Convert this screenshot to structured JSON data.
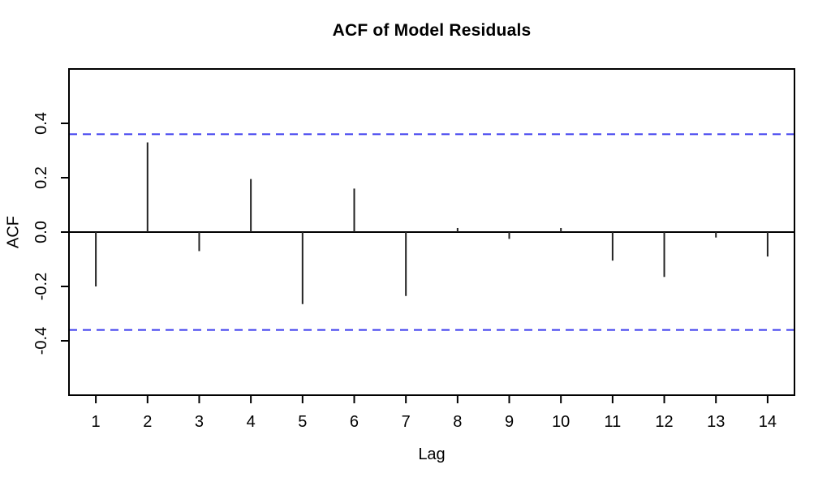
{
  "figure": {
    "title": "ACF of Model Residuals",
    "xlabel": "Lag",
    "ylabel": "ACF"
  },
  "colors": {
    "background": "#ffffff",
    "axis": "#000000",
    "spike": "#222222",
    "zero_line": "#000000",
    "ci_line": "#3a3aee",
    "tick_text": "#000000"
  },
  "chart_data": {
    "type": "bar",
    "subtype": "acf-spike-plot",
    "title": "ACF of Model Residuals",
    "xlabel": "Lag",
    "ylabel": "ACF",
    "x": [
      1,
      2,
      3,
      4,
      5,
      6,
      7,
      8,
      9,
      10,
      11,
      12,
      13,
      14
    ],
    "values": [
      -0.2,
      0.33,
      -0.07,
      0.195,
      -0.265,
      0.16,
      -0.235,
      0.015,
      -0.025,
      0.015,
      -0.105,
      -0.165,
      -0.02,
      -0.09
    ],
    "conf_band": 0.36,
    "conf_band_style": "dashed",
    "xlim": [
      0.48,
      14.52
    ],
    "ylim": [
      -0.6,
      0.6
    ],
    "x_ticks": [
      1,
      2,
      3,
      4,
      5,
      6,
      7,
      8,
      9,
      10,
      11,
      12,
      13,
      14
    ],
    "x_tick_labels": [
      "1",
      "2",
      "3",
      "4",
      "5",
      "6",
      "7",
      "8",
      "9",
      "10",
      "11",
      "12",
      "13",
      "14"
    ],
    "y_ticks": [
      0.4,
      0.2,
      0.0,
      -0.2,
      -0.4
    ],
    "y_tick_labels": [
      "0.4",
      "0.2",
      "0.0",
      "-0.2",
      "-0.4"
    ],
    "grid": false,
    "legend": null
  }
}
